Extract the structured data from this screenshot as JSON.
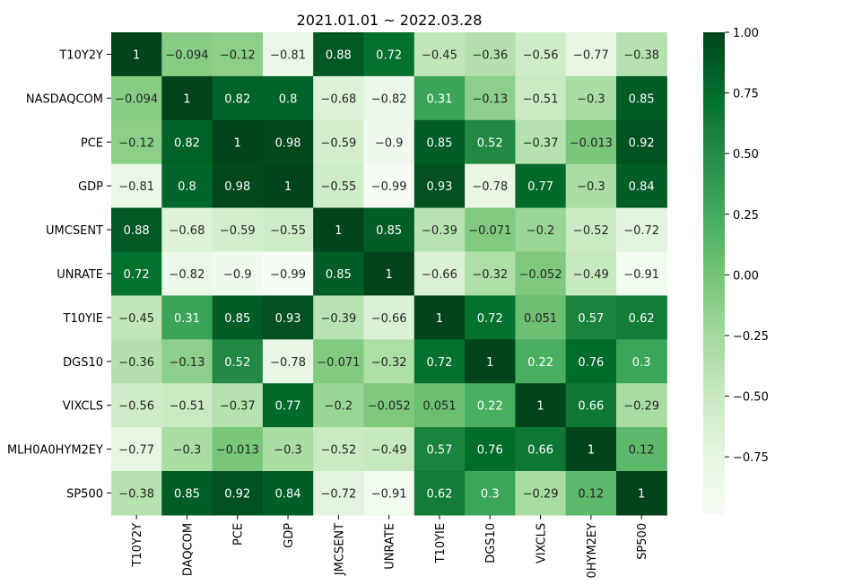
{
  "chart_data": {
    "type": "heatmap",
    "title": "2021.01.01 ~ 2022.03.28",
    "row_labels": [
      "T10Y2Y",
      "NASDAQCOM",
      "PCE",
      "GDP",
      "UMCSENT",
      "UNRATE",
      "T10YIE",
      "DGS10",
      "VIXCLS",
      "MLH0A0HYM2EY",
      "SP500"
    ],
    "col_labels": [
      "T10Y2Y",
      "DAQCOM",
      "PCE",
      "GDP",
      "JMCSENT",
      "UNRATE",
      "T10YIE",
      "DGS10",
      "VIXCLS",
      "0HYM2EY",
      "SP500"
    ],
    "values": [
      [
        1,
        -0.094,
        -0.12,
        -0.81,
        0.88,
        0.72,
        -0.45,
        -0.36,
        -0.56,
        -0.77,
        -0.38
      ],
      [
        -0.094,
        1,
        0.82,
        0.8,
        -0.68,
        -0.82,
        0.31,
        -0.13,
        -0.51,
        -0.3,
        0.85
      ],
      [
        -0.12,
        0.82,
        1,
        0.98,
        -0.59,
        -0.9,
        0.85,
        0.52,
        -0.37,
        -0.013,
        0.92
      ],
      [
        -0.81,
        0.8,
        0.98,
        1,
        -0.55,
        -0.99,
        0.93,
        -0.78,
        0.77,
        -0.3,
        0.84
      ],
      [
        0.88,
        -0.68,
        -0.59,
        -0.55,
        1,
        0.85,
        -0.39,
        -0.071,
        -0.2,
        -0.52,
        -0.72
      ],
      [
        0.72,
        -0.82,
        -0.9,
        -0.99,
        0.85,
        1,
        -0.66,
        -0.32,
        -0.052,
        -0.49,
        -0.91
      ],
      [
        -0.45,
        0.31,
        0.85,
        0.93,
        -0.39,
        -0.66,
        1,
        0.72,
        0.051,
        0.57,
        0.62
      ],
      [
        -0.36,
        -0.13,
        0.52,
        -0.78,
        -0.071,
        -0.32,
        0.72,
        1,
        0.22,
        0.76,
        0.3
      ],
      [
        -0.56,
        -0.51,
        -0.37,
        0.77,
        -0.2,
        -0.052,
        0.051,
        0.22,
        1,
        0.66,
        -0.29
      ],
      [
        -0.77,
        -0.3,
        -0.013,
        -0.3,
        -0.52,
        -0.49,
        0.57,
        0.76,
        0.66,
        1,
        0.12
      ],
      [
        -0.38,
        0.85,
        0.92,
        0.84,
        -0.72,
        -0.91,
        0.62,
        0.3,
        -0.29,
        0.12,
        1
      ]
    ],
    "colorbar": {
      "min": -0.99,
      "max": 1.0,
      "ticks": [
        1.0,
        0.75,
        0.5,
        0.25,
        0.0,
        -0.25,
        -0.5,
        -0.75
      ],
      "tick_labels": [
        "1.00",
        "0.75",
        "0.50",
        "0.25",
        "0.00",
        "−0.25",
        "−0.50",
        "−0.75"
      ]
    },
    "colormap": [
      "#f7fcf5",
      "#e5f5e0",
      "#c7e9c0",
      "#a1d99b",
      "#74c476",
      "#41ab5d",
      "#238b45",
      "#006d2c",
      "#00441b"
    ],
    "annotations": "cell values printed in each cell",
    "grid": false
  }
}
